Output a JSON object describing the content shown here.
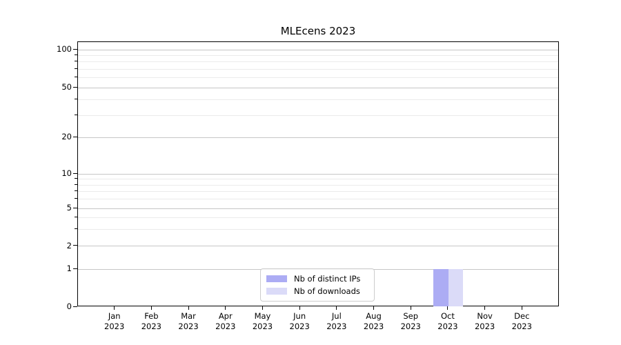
{
  "chart_data": {
    "type": "bar",
    "title": "MLEcens 2023",
    "categories": [
      {
        "month": "Jan",
        "year": "2023"
      },
      {
        "month": "Feb",
        "year": "2023"
      },
      {
        "month": "Mar",
        "year": "2023"
      },
      {
        "month": "Apr",
        "year": "2023"
      },
      {
        "month": "May",
        "year": "2023"
      },
      {
        "month": "Jun",
        "year": "2023"
      },
      {
        "month": "Jul",
        "year": "2023"
      },
      {
        "month": "Aug",
        "year": "2023"
      },
      {
        "month": "Sep",
        "year": "2023"
      },
      {
        "month": "Oct",
        "year": "2023"
      },
      {
        "month": "Nov",
        "year": "2023"
      },
      {
        "month": "Dec",
        "year": "2023"
      }
    ],
    "series": [
      {
        "name": "Nb of distinct IPs",
        "color": "#acacf4",
        "values": [
          0,
          0,
          0,
          0,
          0,
          0,
          0,
          0,
          0,
          1,
          0,
          0
        ]
      },
      {
        "name": "Nb of downloads",
        "color": "#dbdbf8",
        "values": [
          0,
          0,
          0,
          0,
          0,
          0,
          0,
          0,
          0,
          1,
          0,
          0
        ]
      }
    ],
    "y_axis": {
      "scale": "symlog",
      "ticks": [
        0,
        1,
        2,
        5,
        10,
        20,
        50,
        100
      ],
      "minor_ticks": [
        3,
        4,
        6,
        7,
        8,
        9,
        30,
        40,
        60,
        70,
        80,
        90
      ],
      "range": [
        0,
        115
      ]
    },
    "grid": {
      "major_color": "#c6c6c6",
      "minor_color": "#ebebeb"
    },
    "legend": {
      "position": "lower center"
    }
  }
}
